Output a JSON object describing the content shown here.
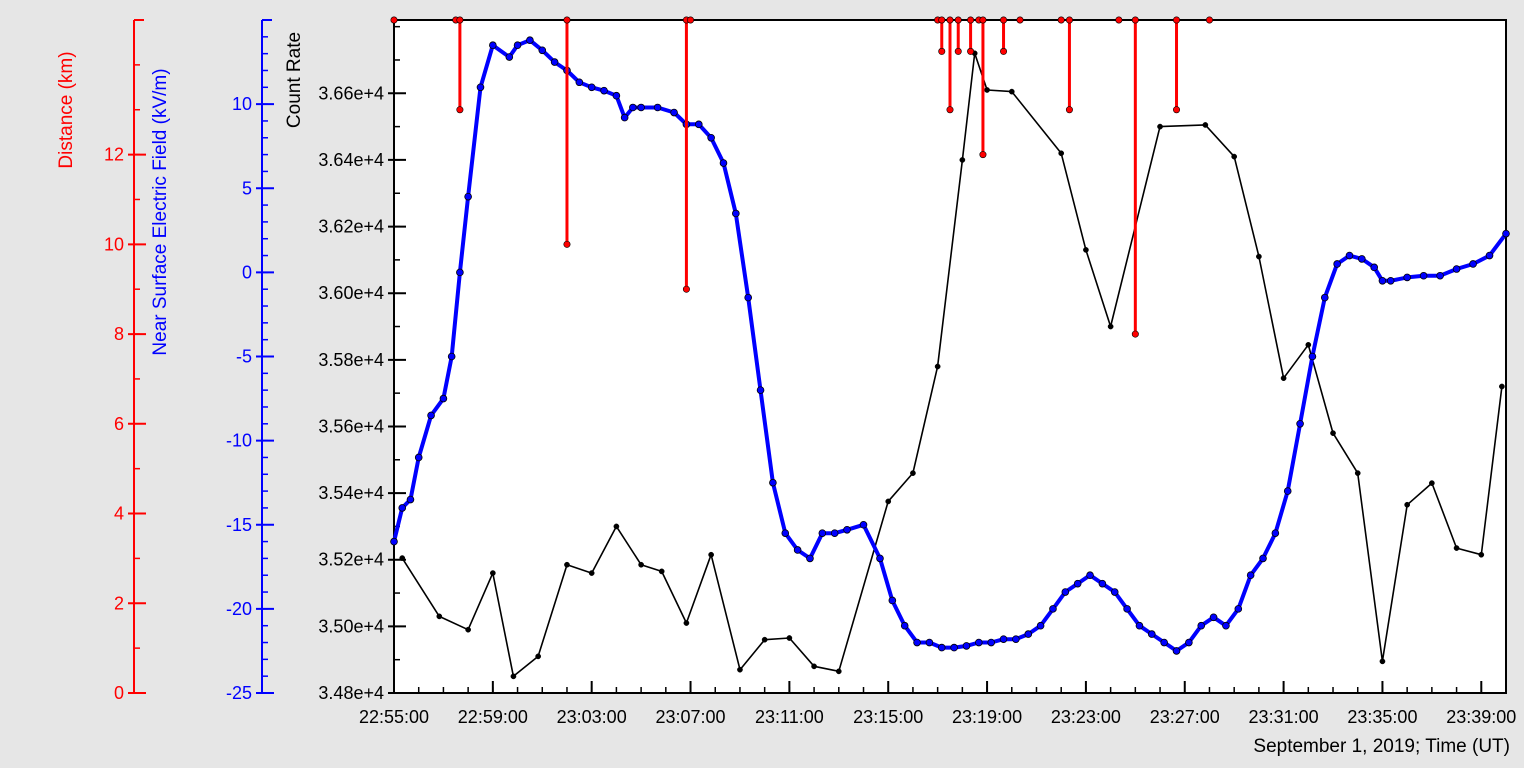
{
  "chart_data": {
    "type": "line",
    "xlabel": "September 1, 2019; Time (UT)",
    "x_range": [
      "22:55:00",
      "23:40:00"
    ],
    "x_ticks": [
      "22:55:00",
      "22:59:00",
      "23:03:00",
      "23:07:00",
      "23:11:00",
      "23:15:00",
      "23:19:00",
      "23:23:00",
      "23:27:00",
      "23:31:00",
      "23:35:00",
      "23:39:00"
    ],
    "colors": {
      "distance": "#ff0000",
      "field": "#0000ff",
      "count": "#000000",
      "background": "#e6e6e6",
      "plot": "#ffffff"
    },
    "axes": [
      {
        "id": "distance",
        "label": "Distance (km)",
        "ylim": [
          0,
          15
        ],
        "ticks": [
          "0",
          "2",
          "4",
          "6",
          "8",
          "10",
          "12"
        ]
      },
      {
        "id": "field",
        "label": "Near Surface Electric Field (kV/m)",
        "ylim": [
          -25,
          15
        ],
        "ticks": [
          "-25",
          "-20",
          "-15",
          "-10",
          "-5",
          "0",
          "5",
          "10"
        ]
      },
      {
        "id": "count",
        "label": "Count Rate",
        "ylim": [
          34800,
          36820
        ],
        "ticks": [
          "3.48e+4",
          "3.50e+4",
          "3.52e+4",
          "3.54e+4",
          "3.56e+4",
          "3.58e+4",
          "3.60e+4",
          "3.62e+4",
          "3.64e+4",
          "3.66e+4"
        ]
      }
    ],
    "series": [
      {
        "axis": "count",
        "x": [
          "22:55:20",
          "22:56:50",
          "22:58:00",
          "22:59:00",
          "22:59:50",
          "23:00:50",
          "23:02:00",
          "23:03:00",
          "23:04:00",
          "23:05:00",
          "23:05:50",
          "23:06:50",
          "23:07:50",
          "23:09:00",
          "23:10:00",
          "23:11:00",
          "23:12:00",
          "23:13:00",
          "23:15:00",
          "23:16:00",
          "23:17:00",
          "23:18:00",
          "23:18:30",
          "23:19:00",
          "23:20:00",
          "23:22:00",
          "23:23:00",
          "23:24:00",
          "23:26:00",
          "23:27:50",
          "23:29:00",
          "23:30:00",
          "23:31:00",
          "23:32:00",
          "23:33:00",
          "23:34:00",
          "23:35:00",
          "23:36:00",
          "23:37:00",
          "23:38:00",
          "23:39:00",
          "23:39:50"
        ],
        "y": [
          35205,
          35030,
          34990,
          35160,
          34850,
          34910,
          35185,
          35160,
          35300,
          35185,
          35165,
          35010,
          35215,
          34870,
          34960,
          34965,
          34880,
          34865,
          35375,
          35460,
          35780,
          36400,
          36720,
          36610,
          36605,
          36420,
          36130,
          35900,
          36500,
          36505,
          36410,
          36110,
          35745,
          35845,
          35580,
          35460,
          34895,
          35365,
          35430,
          35235,
          35215,
          35720
        ]
      },
      {
        "axis": "field",
        "x": [
          "22:55:00",
          "22:55:20",
          "22:55:40",
          "22:56:00",
          "22:56:30",
          "22:57:00",
          "22:57:20",
          "22:57:40",
          "22:58:00",
          "22:58:30",
          "22:59:00",
          "22:59:40",
          "23:00:00",
          "23:00:30",
          "23:01:00",
          "23:01:30",
          "23:02:00",
          "23:02:30",
          "23:03:00",
          "23:03:30",
          "23:04:00",
          "23:04:20",
          "23:04:40",
          "23:05:00",
          "23:05:40",
          "23:06:20",
          "23:06:50",
          "23:07:20",
          "23:07:50",
          "23:08:20",
          "23:08:50",
          "23:09:20",
          "23:09:50",
          "23:10:20",
          "23:10:50",
          "23:11:20",
          "23:11:50",
          "23:12:20",
          "23:12:50",
          "23:13:20",
          "23:14:00",
          "23:14:40",
          "23:15:10",
          "23:15:40",
          "23:16:10",
          "23:16:40",
          "23:17:10",
          "23:17:40",
          "23:18:10",
          "23:18:40",
          "23:19:10",
          "23:19:40",
          "23:20:10",
          "23:20:40",
          "23:21:10",
          "23:21:40",
          "23:22:10",
          "23:22:40",
          "23:23:10",
          "23:23:40",
          "23:24:10",
          "23:24:40",
          "23:25:10",
          "23:25:40",
          "23:26:10",
          "23:26:40",
          "23:27:10",
          "23:27:40",
          "23:28:10",
          "23:28:40",
          "23:29:10",
          "23:29:40",
          "23:30:10",
          "23:30:40",
          "23:31:10",
          "23:31:40",
          "23:32:10",
          "23:32:40",
          "23:33:10",
          "23:33:40",
          "23:34:10",
          "23:34:40",
          "23:35:00",
          "23:35:20",
          "23:36:00",
          "23:36:40",
          "23:37:20",
          "23:38:00",
          "23:38:40",
          "23:39:20",
          "23:40:00"
        ],
        "y": [
          -16.0,
          -14.0,
          -13.5,
          -11.0,
          -8.5,
          -7.5,
          -5.0,
          0.0,
          4.5,
          11.0,
          13.5,
          12.8,
          13.5,
          13.8,
          13.2,
          12.5,
          12.0,
          11.3,
          11.0,
          10.8,
          10.5,
          9.2,
          9.8,
          9.8,
          9.8,
          9.5,
          8.8,
          8.8,
          8.0,
          6.5,
          3.5,
          -1.5,
          -7.0,
          -12.5,
          -15.5,
          -16.5,
          -17.0,
          -15.5,
          -15.5,
          -15.3,
          -15.0,
          -17.0,
          -19.5,
          -21.0,
          -22.0,
          -22.0,
          -22.3,
          -22.3,
          -22.2,
          -22.0,
          -22.0,
          -21.8,
          -21.8,
          -21.5,
          -21.0,
          -20.0,
          -19.0,
          -18.5,
          -18.0,
          -18.5,
          -19.0,
          -20.0,
          -21.0,
          -21.5,
          -22.0,
          -22.5,
          -22.0,
          -21.0,
          -20.5,
          -21.0,
          -20.0,
          -18.0,
          -17.0,
          -15.5,
          -13.0,
          -9.0,
          -5.0,
          -1.5,
          0.5,
          1.0,
          0.8,
          0.3,
          -0.5,
          -0.5,
          -0.3,
          -0.2,
          -0.2,
          0.2,
          0.5,
          1.0,
          2.3
        ]
      },
      {
        "axis": "distance",
        "x": [
          "22:55:00",
          "22:57:30",
          "22:57:40",
          "23:02:00",
          "23:06:50",
          "23:07:00",
          "23:17:00",
          "23:17:10",
          "23:17:30",
          "23:17:50",
          "23:18:20",
          "23:18:40",
          "23:18:50",
          "23:19:40",
          "23:20:20",
          "23:22:00",
          "23:22:20",
          "23:24:20",
          "23:25:00",
          "23:26:40",
          "23:28:00"
        ],
        "y": [
          15.0,
          15.0,
          13.0,
          10.0,
          9.0,
          15.0,
          15.0,
          14.3,
          13.0,
          14.3,
          14.3,
          15.0,
          12.0,
          14.3,
          15.0,
          15.0,
          13.0,
          15.0,
          8.0,
          13.0,
          15.0
        ]
      }
    ]
  }
}
